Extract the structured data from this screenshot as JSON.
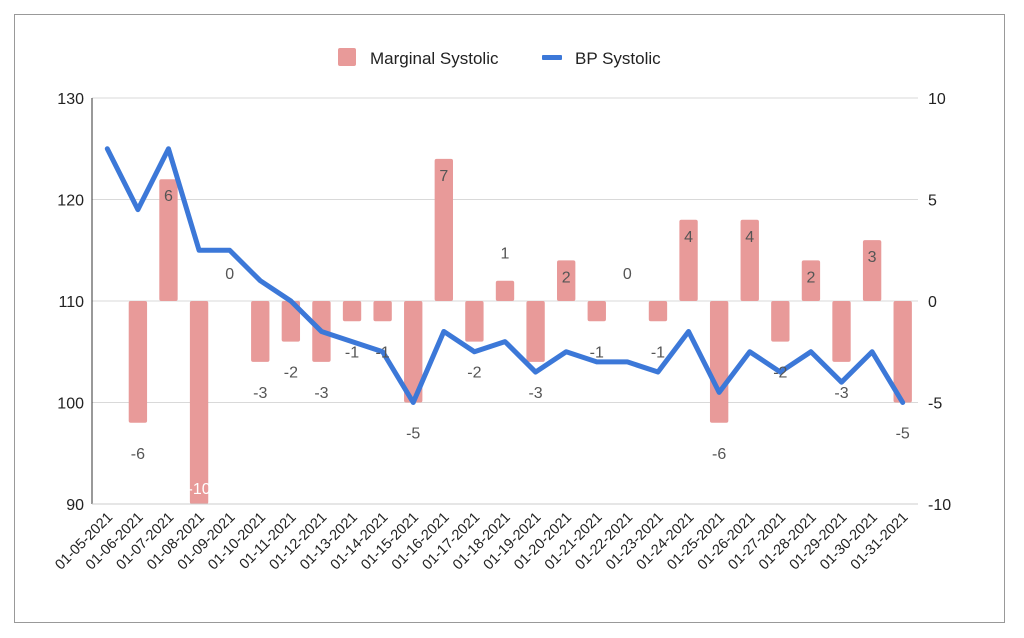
{
  "chart_data": {
    "type": "bar+line",
    "title": "",
    "legend": [
      {
        "name": "Marginal Systolic",
        "color": "#e89a99",
        "mark": "bar"
      },
      {
        "name": "BP Systolic",
        "color": "#3c78d8",
        "mark": "line"
      }
    ],
    "legend_position": "top",
    "categories": [
      "01-05-2021",
      "01-06-2021",
      "01-07-2021",
      "01-08-2021",
      "01-09-2021",
      "01-10-2021",
      "01-11-2021",
      "01-12-2021",
      "01-13-2021",
      "01-14-2021",
      "01-15-2021",
      "01-16-2021",
      "01-17-2021",
      "01-18-2021",
      "01-19-2021",
      "01-20-2021",
      "01-21-2021",
      "01-22-2021",
      "01-23-2021",
      "01-24-2021",
      "01-25-2021",
      "01-26-2021",
      "01-27-2021",
      "01-28-2021",
      "01-29-2021",
      "01-30-2021",
      "01-31-2021"
    ],
    "series": [
      {
        "name": "Marginal Systolic",
        "axis": "right",
        "type": "bar",
        "values": [
          null,
          -6,
          6,
          -10,
          0,
          -3,
          -2,
          -3,
          -1,
          -1,
          -5,
          7,
          -2,
          1,
          -3,
          2,
          -1,
          0,
          -1,
          4,
          -6,
          4,
          -2,
          2,
          -3,
          3,
          -5
        ]
      },
      {
        "name": "BP Systolic",
        "axis": "left",
        "type": "line",
        "values": [
          125,
          119,
          125,
          115,
          115,
          112,
          110,
          107,
          106,
          105,
          100,
          107,
          105,
          106,
          103,
          105,
          104,
          104,
          103,
          107,
          101,
          105,
          103,
          105,
          102,
          105,
          100
        ]
      }
    ],
    "left_axis": {
      "ylim": [
        90,
        130
      ],
      "ticks": [
        "90",
        "100",
        "110",
        "120",
        "130"
      ]
    },
    "right_axis": {
      "ylim": [
        -10,
        10
      ],
      "ticks": [
        "-10",
        "-5",
        "0",
        "5",
        "10"
      ]
    },
    "grid": true
  }
}
